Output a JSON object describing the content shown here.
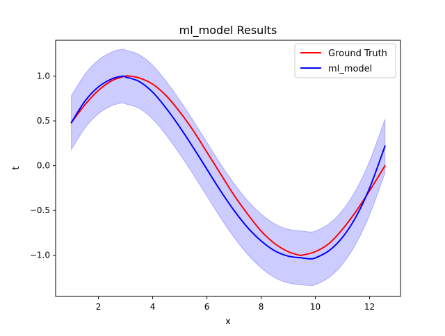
{
  "chart_data": {
    "type": "line",
    "title": "ml_model Results",
    "xlabel": "x",
    "ylabel": "t",
    "xlim": [
      0.42,
      13.14
    ],
    "ylim": [
      -1.46,
      1.4
    ],
    "xticks": [
      2,
      4,
      6,
      8,
      10,
      12
    ],
    "xtick_labels": [
      "2",
      "4",
      "6",
      "8",
      "10",
      "12"
    ],
    "yticks": [
      -1.0,
      -0.5,
      0.0,
      0.5,
      1.0
    ],
    "ytick_labels": [
      "−1.0",
      "−0.5",
      "0.0",
      "0.5",
      "1.0"
    ],
    "grid": false,
    "legend": {
      "position": "top-right",
      "entries": [
        "Ground Truth",
        "ml_model"
      ]
    },
    "series": [
      {
        "name": "Ground Truth",
        "color": "#ff0000",
        "x": [
          1.0,
          1.5,
          2.0,
          2.5,
          3.0,
          3.14,
          3.5,
          4.0,
          4.5,
          5.0,
          5.5,
          6.0,
          6.5,
          7.0,
          7.5,
          8.0,
          8.5,
          9.0,
          9.42,
          9.5,
          10.0,
          10.5,
          11.0,
          11.5,
          12.0,
          12.57
        ],
        "y": [
          0.48,
          0.68,
          0.84,
          0.95,
          1.0,
          1.0,
          0.98,
          0.91,
          0.78,
          0.6,
          0.39,
          0.15,
          -0.09,
          -0.33,
          -0.54,
          -0.73,
          -0.87,
          -0.96,
          -1.0,
          -1.0,
          -0.96,
          -0.87,
          -0.71,
          -0.51,
          -0.28,
          0.0
        ]
      },
      {
        "name": "ml_model",
        "color": "#0000ff",
        "x": [
          1.0,
          1.5,
          2.0,
          2.5,
          2.9,
          3.0,
          3.5,
          4.0,
          4.5,
          5.0,
          5.5,
          6.0,
          6.5,
          7.0,
          7.5,
          8.0,
          8.5,
          9.0,
          9.5,
          9.8,
          10.0,
          10.5,
          11.0,
          11.5,
          12.0,
          12.57
        ],
        "y": [
          0.48,
          0.72,
          0.88,
          0.97,
          1.0,
          0.99,
          0.94,
          0.82,
          0.64,
          0.43,
          0.2,
          -0.04,
          -0.28,
          -0.5,
          -0.69,
          -0.84,
          -0.95,
          -1.01,
          -1.03,
          -1.04,
          -1.03,
          -0.95,
          -0.8,
          -0.57,
          -0.25,
          0.22
        ]
      }
    ],
    "band": {
      "around": "ml_model",
      "color": "#0000ff",
      "opacity": 0.2,
      "half_width": 0.3
    }
  }
}
